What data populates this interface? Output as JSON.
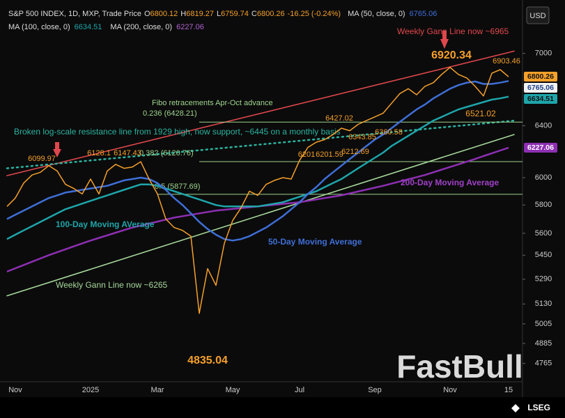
{
  "chart_data": {
    "type": "line",
    "currency": "USD",
    "log_scale": true,
    "grid": false,
    "categories": [
      null,
      "Nov",
      null,
      null,
      null,
      null,
      null,
      null,
      null,
      null,
      "2025",
      null,
      null,
      null,
      null,
      null,
      null,
      null,
      "Mar",
      null,
      null,
      null,
      null,
      null,
      null,
      null,
      null,
      "May",
      null,
      null,
      null,
      null,
      null,
      null,
      null,
      "Jul",
      null,
      null,
      null,
      null,
      null,
      null,
      null,
      null,
      "Sep",
      null,
      null,
      null,
      null,
      null,
      null,
      null,
      null,
      "Nov",
      null,
      null,
      null,
      null,
      null,
      null,
      "15"
    ],
    "series": [
      {
        "name": "S&P 500 INDEX, 1D, MXP, Trade Price",
        "color": "#f5a02a",
        "values": [
          5790,
          5850,
          5960,
          6020,
          6040,
          6090,
          6050,
          5950,
          5920,
          5880,
          5990,
          5880,
          6050,
          6100,
          6070,
          6080,
          6120,
          5990,
          5880,
          5700,
          5640,
          5620,
          5580,
          5070,
          5360,
          5250,
          5530,
          5690,
          5780,
          5900,
          5870,
          5950,
          5980,
          6000,
          5990,
          6130,
          6230,
          6270,
          6290,
          6330,
          6380,
          6360,
          6410,
          6440,
          6470,
          6500,
          6580,
          6660,
          6700,
          6650,
          6720,
          6750,
          6820,
          6880,
          6820,
          6790,
          6720,
          6640,
          6830,
          6860,
          6800.26
        ]
      },
      {
        "name": "MA (50, close, 0)",
        "color": "#3f6fd8",
        "values": [
          5700,
          5730,
          5760,
          5790,
          5820,
          5850,
          5870,
          5890,
          5900,
          5910,
          5920,
          5930,
          5940,
          5960,
          5980,
          5990,
          6000,
          5990,
          5960,
          5910,
          5850,
          5800,
          5740,
          5680,
          5630,
          5590,
          5560,
          5550,
          5560,
          5580,
          5610,
          5640,
          5680,
          5720,
          5770,
          5820,
          5880,
          5930,
          5990,
          6040,
          6090,
          6140,
          6190,
          6240,
          6290,
          6330,
          6380,
          6430,
          6480,
          6530,
          6570,
          6620,
          6660,
          6700,
          6730,
          6750,
          6760,
          6740,
          6740,
          6750,
          6765.06
        ]
      },
      {
        "name": "MA (100, close, 0)",
        "color": "#1ea5aa",
        "values": [
          5560,
          5590,
          5620,
          5650,
          5680,
          5710,
          5740,
          5770,
          5790,
          5810,
          5830,
          5850,
          5870,
          5890,
          5910,
          5930,
          5950,
          5950,
          5940,
          5920,
          5900,
          5880,
          5860,
          5840,
          5820,
          5800,
          5790,
          5790,
          5790,
          5790,
          5790,
          5800,
          5810,
          5820,
          5840,
          5860,
          5880,
          5900,
          5930,
          5960,
          5990,
          6030,
          6070,
          6110,
          6150,
          6190,
          6240,
          6280,
          6320,
          6360,
          6400,
          6440,
          6470,
          6500,
          6530,
          6550,
          6570,
          6590,
          6610,
          6620,
          6634.51
        ]
      },
      {
        "name": "MA (200, close, 0)",
        "color": "#8e2fb3",
        "values": [
          5340,
          5362,
          5384,
          5406,
          5428,
          5450,
          5470,
          5490,
          5510,
          5530,
          5550,
          5568,
          5586,
          5604,
          5622,
          5640,
          5654,
          5668,
          5682,
          5696,
          5710,
          5720,
          5730,
          5740,
          5750,
          5760,
          5766,
          5772,
          5778,
          5784,
          5790,
          5796,
          5802,
          5808,
          5814,
          5820,
          5830,
          5840,
          5850,
          5860,
          5870,
          5884,
          5898,
          5912,
          5926,
          5940,
          5956,
          5972,
          5988,
          6004,
          6020,
          6040,
          6060,
          6080,
          6100,
          6120,
          6141,
          6163,
          6184,
          6206,
          6227.06
        ]
      }
    ],
    "ylim": [
      4650,
      7415
    ],
    "yticks": [
      7000,
      6400,
      6000,
      5800,
      5600,
      5450,
      5290,
      5130,
      5005,
      4885,
      4765
    ],
    "last_bar": {
      "labels": [
        "O",
        "H",
        "L",
        "C"
      ],
      "values": [
        6800.12,
        6819.27,
        6759.74,
        6800.26
      ],
      "change": "-16.25 (-0.24%)"
    },
    "trendlines": [
      {
        "label": "Weekly Gann Line now ~6965",
        "color": "#e0474c",
        "values": [
          6015,
          7020
        ]
      },
      {
        "label": "Weekly Gann Line now ~6265",
        "color": "#a6d79a",
        "values": [
          5182,
          6330
        ]
      },
      {
        "label": "Broken log-scale resistance line from 1929 high, now support, ~6445 on a monthly basis",
        "color": "#2bb3a0",
        "dashed": true,
        "values": [
          6070,
          6440
        ]
      }
    ],
    "fib_title": "Fibo retracements Apr-Oct advance",
    "levels": [
      {
        "label": "0.236 (6428.21)",
        "value": 6428.21
      },
      {
        "label": "0.382 (6120.76)",
        "value": 6120.76
      },
      {
        "label": "0.5 (5877.69)",
        "value": 5877.69
      }
    ],
    "ma_labels": [
      {
        "text": "100-Day Moving AVerage",
        "color": "#1ea5aa"
      },
      {
        "text": "50-Day Moving Average",
        "color": "#3f6fd8"
      },
      {
        "text": "200-Day Moving Average",
        "color": "#a040c8"
      }
    ],
    "price_labels": [
      6920.34,
      6903.46,
      6521.02,
      6099.97,
      6128.1,
      6147.43,
      6427.02,
      6201,
      6201.59,
      6212.69,
      6343.85,
      6360.58,
      4835.04
    ],
    "watermark": "FastBull",
    "source": "LSEG"
  }
}
